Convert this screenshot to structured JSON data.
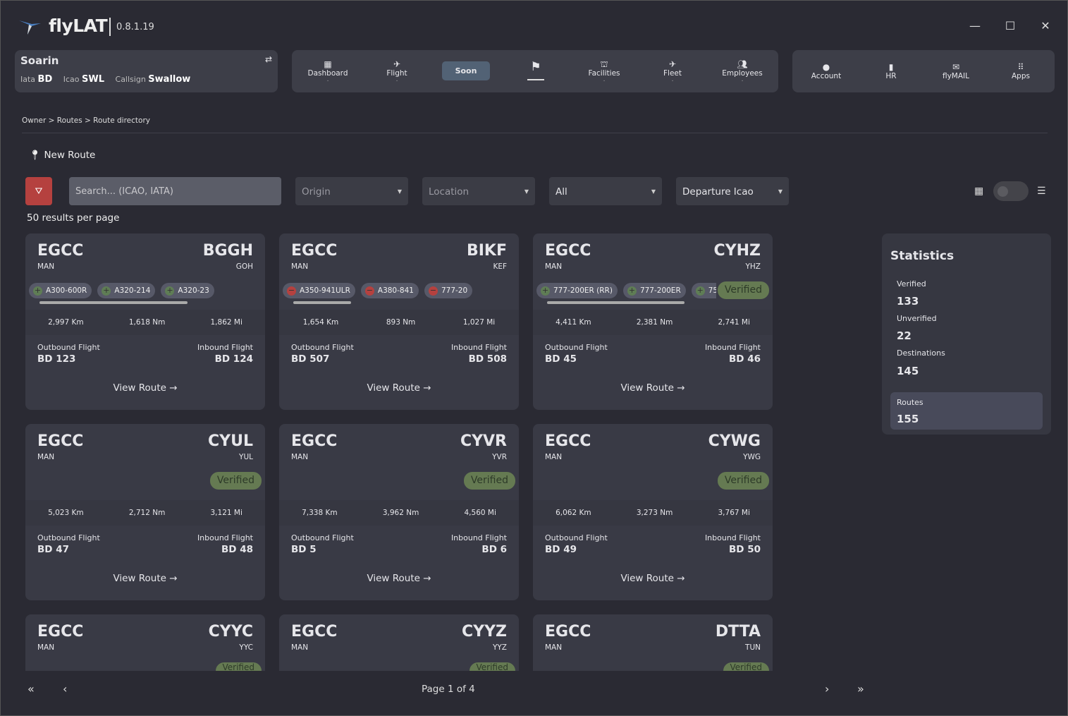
{
  "app": {
    "name": "flyLAT",
    "version": "0.8.1.19",
    "minimize_icon": "minimize-icon",
    "maximize_icon": "maximize-icon",
    "close_icon": "close-icon"
  },
  "airline": {
    "name": "Soarin",
    "iata_label": "Iata",
    "iata": "BD",
    "icao_label": "Icao",
    "icao": "SWL",
    "callsign_label": "Callsign",
    "callsign": "Swallow"
  },
  "nav": [
    {
      "label": "Dashboard",
      "icon": "dashboard-icon"
    },
    {
      "label": "Flight",
      "icon": "flight-takeoff-icon"
    },
    {
      "label": "Soon"
    },
    {
      "label": "",
      "icon": "signpost-icon",
      "active": true
    },
    {
      "label": "Facilities",
      "icon": "facilities-icon"
    },
    {
      "label": "Fleet",
      "icon": "plane-icon"
    },
    {
      "label": "Employees",
      "icon": "people-icon"
    }
  ],
  "user_nav": [
    {
      "label": "Account",
      "icon": "account-icon"
    },
    {
      "label": "HR",
      "icon": "badge-icon"
    },
    {
      "label": "flyMAIL",
      "icon": "mail-icon"
    },
    {
      "label": "Apps",
      "icon": "apps-grid-icon"
    }
  ],
  "breadcrumb": "Owner > Routes > Route directory",
  "new_route": "New Route",
  "filters": {
    "search_placeholder": "Search... (ICAO, IATA)",
    "origin": "Origin",
    "location": "Location",
    "status": "All",
    "sort": "Departure Icao"
  },
  "per_page": "50 results per page",
  "labels": {
    "outbound": "Outbound Flight",
    "inbound": "Inbound Flight",
    "view": "View Route →",
    "verified": "Verified"
  },
  "routes": [
    {
      "origin": "EGCC",
      "origin_iata": "MAN",
      "dest": "BGGH",
      "dest_iata": "GOH",
      "aircraft": [
        {
          "type": "A300-600R",
          "state": "add"
        },
        {
          "type": "A320-214",
          "state": "add"
        },
        {
          "type": "A320-23",
          "state": "add"
        }
      ],
      "verified": false,
      "km": "2,997 Km",
      "nm": "1,618 Nm",
      "mi": "1,862 Mi",
      "outbound": "BD 123",
      "inbound": "BD 124"
    },
    {
      "origin": "EGCC",
      "origin_iata": "MAN",
      "dest": "BIKF",
      "dest_iata": "KEF",
      "aircraft": [
        {
          "type": "A350-941ULR",
          "state": "remove"
        },
        {
          "type": "A380-841",
          "state": "remove"
        },
        {
          "type": "777-20",
          "state": "remove"
        }
      ],
      "verified": false,
      "km": "1,654 Km",
      "nm": "893 Nm",
      "mi": "1,027 Mi",
      "outbound": "BD 507",
      "inbound": "BD 508"
    },
    {
      "origin": "EGCC",
      "origin_iata": "MAN",
      "dest": "CYHZ",
      "dest_iata": "YHZ",
      "aircraft": [
        {
          "type": "777-200ER (RR)",
          "state": "add"
        },
        {
          "type": "777-200ER",
          "state": "add"
        },
        {
          "type": "757",
          "state": "add"
        }
      ],
      "verified": true,
      "km": "4,411 Km",
      "nm": "2,381 Nm",
      "mi": "2,741 Mi",
      "outbound": "BD 45",
      "inbound": "BD 46"
    },
    {
      "origin": "EGCC",
      "origin_iata": "MAN",
      "dest": "CYUL",
      "dest_iata": "YUL",
      "aircraft": [],
      "verified": true,
      "km": "5,023 Km",
      "nm": "2,712 Nm",
      "mi": "3,121 Mi",
      "outbound": "BD 47",
      "inbound": "BD 48"
    },
    {
      "origin": "EGCC",
      "origin_iata": "MAN",
      "dest": "CYVR",
      "dest_iata": "YVR",
      "aircraft": [],
      "verified": true,
      "km": "7,338 Km",
      "nm": "3,962 Nm",
      "mi": "4,560 Mi",
      "outbound": "BD 5",
      "inbound": "BD 6"
    },
    {
      "origin": "EGCC",
      "origin_iata": "MAN",
      "dest": "CYWG",
      "dest_iata": "YWG",
      "aircraft": [],
      "verified": true,
      "km": "6,062 Km",
      "nm": "3,273 Nm",
      "mi": "3,767 Mi",
      "outbound": "BD 49",
      "inbound": "BD 50"
    },
    {
      "origin": "EGCC",
      "origin_iata": "MAN",
      "dest": "CYYC",
      "dest_iata": "YYC",
      "aircraft": [],
      "verified": true
    },
    {
      "origin": "EGCC",
      "origin_iata": "MAN",
      "dest": "CYYZ",
      "dest_iata": "YYZ",
      "aircraft": [],
      "verified": true
    },
    {
      "origin": "EGCC",
      "origin_iata": "MAN",
      "dest": "DTTA",
      "dest_iata": "TUN",
      "aircraft": [],
      "verified": true
    }
  ],
  "statistics": {
    "title": "Statistics",
    "verified_label": "Verified",
    "verified": "133",
    "unverified_label": "Unverified",
    "unverified": "22",
    "destinations_label": "Destinations",
    "destinations": "145",
    "routes_label": "Routes",
    "routes": "155"
  },
  "pagination": {
    "text": "Page 1 of 4",
    "first_icon": "first-page-icon",
    "prev_icon": "prev-page-icon",
    "next_icon": "next-page-icon",
    "last_icon": "last-page-icon"
  },
  "colors": {
    "background": "#2a2a33",
    "card": "#393a45",
    "verified": "#657a52",
    "add": "#5f7d55",
    "remove": "#b5413f",
    "filter_clear": "#b5413f",
    "active_nav": "#526275"
  }
}
